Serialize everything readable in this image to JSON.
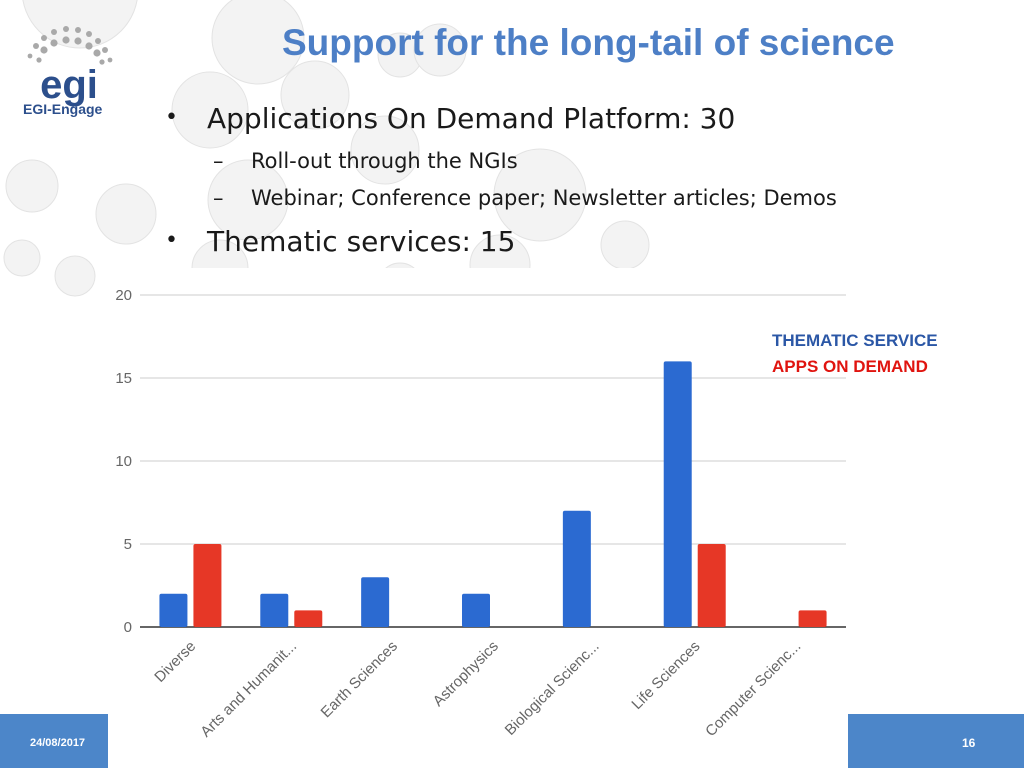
{
  "logo": {
    "wordmark": "egi",
    "subtitle": "EGI-Engage"
  },
  "title": "Support for the long-tail of science",
  "bullets": [
    {
      "level": 1,
      "text": "Applications On Demand Platform: 30"
    },
    {
      "level": 2,
      "text": "Roll-out through the NGIs"
    },
    {
      "level": 2,
      "text": "Webinar; Conference paper; Newsletter articles; Demos"
    },
    {
      "level": 1,
      "text": "Thematic services: 15"
    }
  ],
  "bullet_marks": {
    "level1": "•",
    "level2": "–"
  },
  "legend": {
    "series1": "THEMATIC SERVICE",
    "series2": "APPS ON DEMAND"
  },
  "colors": {
    "series1": "#2b6ad1",
    "series2": "#e63726",
    "title": "#4d7fc6",
    "footer": "#4c86c9"
  },
  "chart_data": {
    "type": "bar",
    "categories": [
      "Diverse",
      "Arts and Humanit...",
      "Earth Sciences",
      "Astrophysics",
      "Biological Scienc...",
      "Life Sciences",
      "Computer Scienc..."
    ],
    "series": [
      {
        "name": "THEMATIC SERVICE",
        "values": [
          2,
          2,
          3,
          2,
          7,
          16,
          0
        ]
      },
      {
        "name": "APPS ON DEMAND",
        "values": [
          5,
          1,
          0,
          0,
          0,
          5,
          1
        ]
      }
    ],
    "y_ticks": [
      "0",
      "5",
      "10",
      "15",
      "20"
    ],
    "ylim": [
      0,
      20
    ],
    "grid": true,
    "legend_position": "top-right"
  },
  "footer": {
    "date": "24/08/2017",
    "page": "16"
  }
}
